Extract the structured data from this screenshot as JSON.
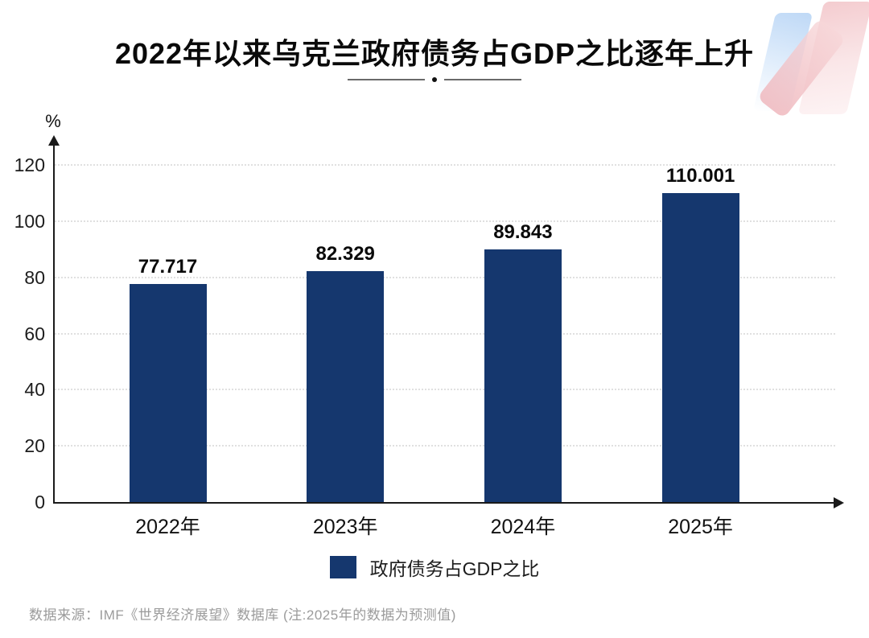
{
  "chart_data": {
    "type": "bar",
    "title": "2022年以来乌克兰政府债务占GDP之比逐年上升",
    "unit_label": "%",
    "categories": [
      "2022年",
      "2023年",
      "2024年",
      "2025年"
    ],
    "values": [
      77.717,
      82.329,
      89.843,
      110.001
    ],
    "value_labels": [
      "77.717",
      "82.329",
      "89.843",
      "110.001"
    ],
    "yticks": [
      0,
      20,
      40,
      60,
      80,
      100,
      120
    ],
    "ylim": [
      0,
      120
    ],
    "grid": "horizontal-dotted",
    "legend": {
      "position": "bottom",
      "label": "政府债务占GDP之比"
    },
    "bar_color": "#15376E"
  },
  "footer": {
    "source_note": "数据来源：IMF《世界经济展望》数据库 (注:2025年的数据为预测值)"
  },
  "icons": {
    "brand_logo": "gradient-ribbon-logo"
  }
}
